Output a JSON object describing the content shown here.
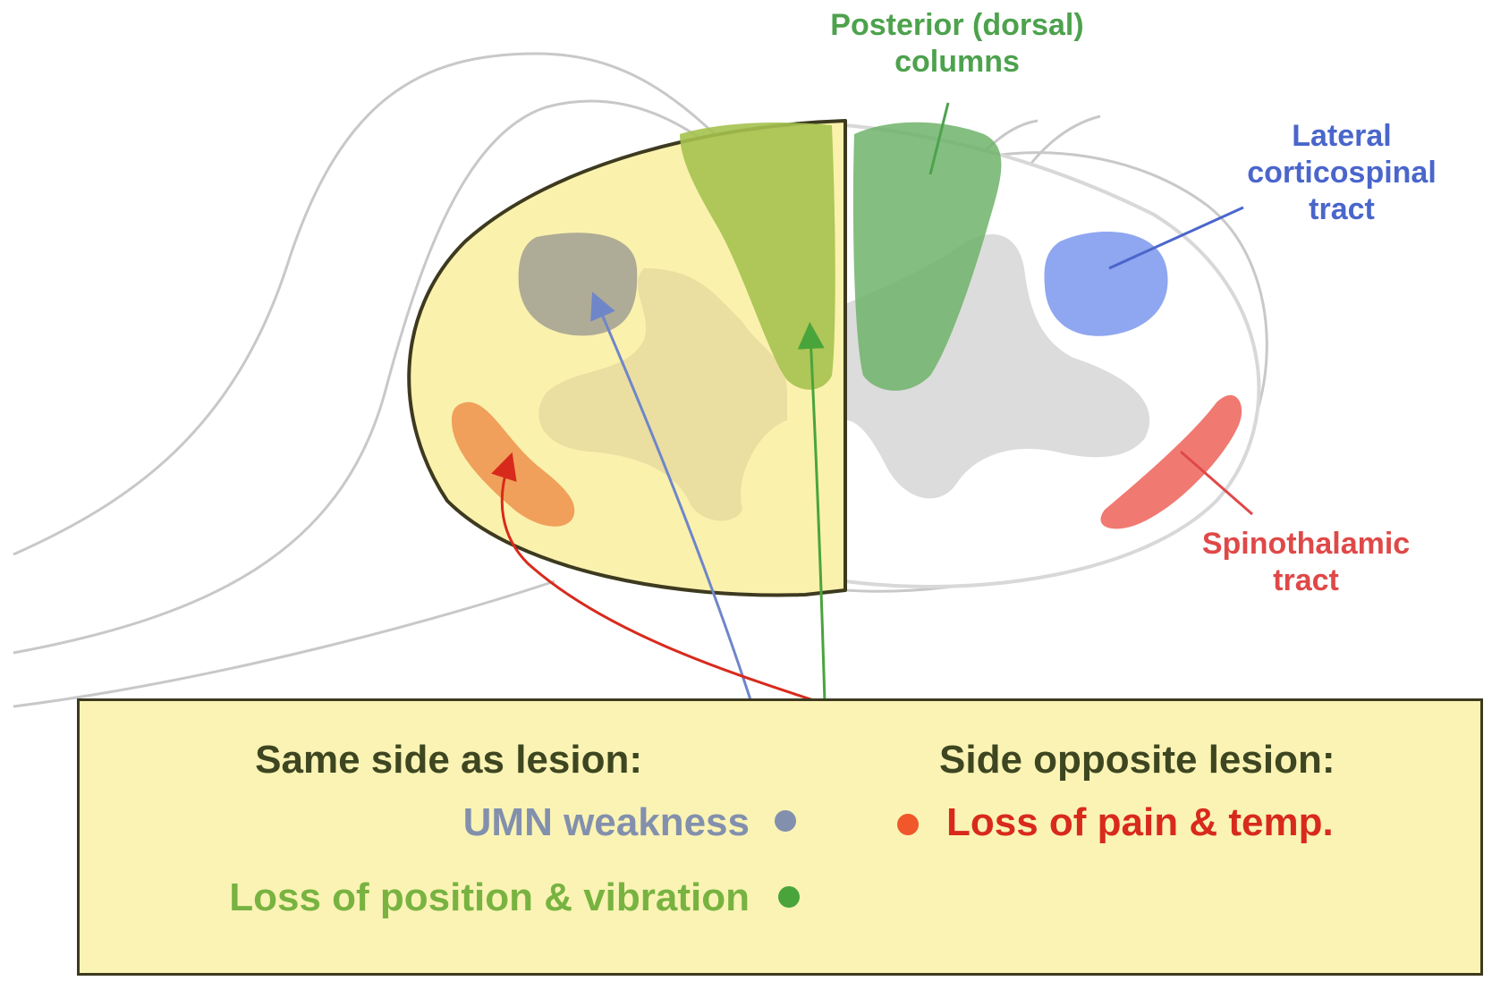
{
  "colors": {
    "lesion_fill": "#faf1ad",
    "umn": "#8290ad",
    "position_vibration": "#78b341",
    "pain_temp": "#d82a1c",
    "dorsal_columns": "#6fb36a",
    "corticospinal": "#8fa6f0",
    "spinothalamic": "#f07a72"
  },
  "icons": {
    "umn_marker": "dot-marker",
    "position_marker": "dot-marker",
    "pain_marker": "dot-marker"
  },
  "labels": {
    "posterior_line1": "Posterior (dorsal)",
    "posterior_line2": "columns",
    "lateral_line1": "Lateral",
    "lateral_line2": "corticospinal",
    "lateral_line3": "tract",
    "spino_line1": "Spinothalamic",
    "spino_line2": "tract"
  },
  "box": {
    "same_side_title": "Same side as lesion:",
    "opposite_side_title": "Side opposite lesion:",
    "umn": "UMN weakness",
    "position": "Loss of position & vibration",
    "pain": "Loss of pain & temp."
  }
}
